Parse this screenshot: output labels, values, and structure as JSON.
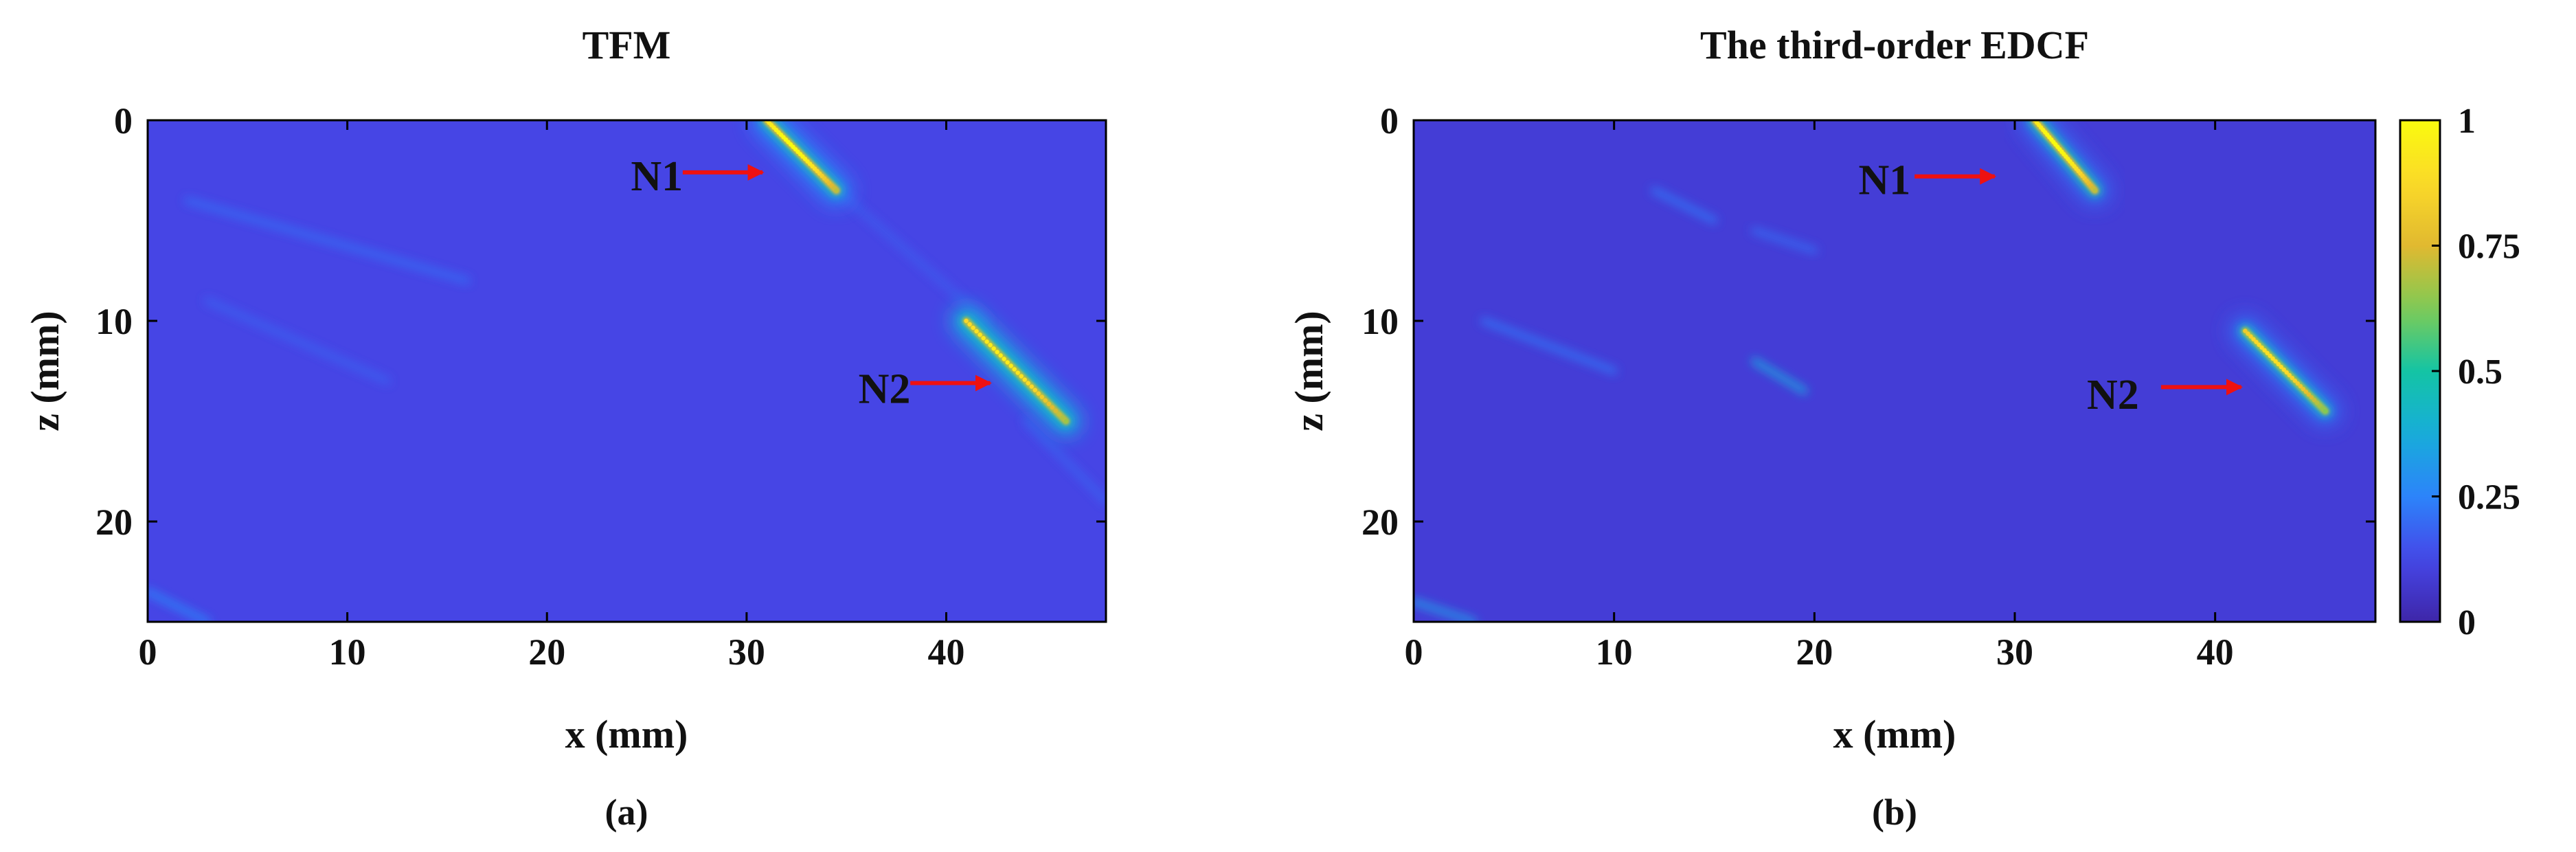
{
  "chart_data": [
    {
      "type": "heatmap",
      "title": "TFM",
      "panel_label": "(a)",
      "xlabel": "x (mm)",
      "ylabel": "z (mm)",
      "xlim": [
        0,
        48
      ],
      "ylim": [
        0,
        25
      ],
      "y_reversed": true,
      "xticks": [
        0,
        10,
        20,
        30,
        40
      ],
      "xtick_labels": [
        "0",
        "10",
        "20",
        "30",
        "40"
      ],
      "yticks": [
        0,
        10,
        20
      ],
      "ytick_labels": [
        "0",
        "10",
        "20"
      ],
      "background_level": 0.12,
      "features": [
        {
          "name": "N1",
          "x_start": 31.0,
          "z_start": 0.0,
          "x_end": 34.5,
          "z_end": 3.5,
          "peak": 1.0,
          "halo": 0.25
        },
        {
          "name": "N2",
          "x_start": 41.0,
          "z_start": 10.0,
          "x_end": 46.0,
          "z_end": 15.0,
          "peak": 0.95,
          "halo": 0.35
        }
      ],
      "streaks": [
        {
          "x_start": 2,
          "z_start": 4,
          "x_end": 16,
          "z_end": 8,
          "level": 0.2
        },
        {
          "x_start": 3,
          "z_start": 9,
          "x_end": 12,
          "z_end": 13,
          "level": 0.18
        },
        {
          "x_start": 0,
          "z_start": 23.5,
          "x_end": 3,
          "z_end": 25,
          "level": 0.25
        },
        {
          "x_start": 34,
          "z_start": 3,
          "x_end": 42,
          "z_end": 10,
          "level": 0.17
        },
        {
          "x_start": 44,
          "z_start": 15,
          "x_end": 48,
          "z_end": 19,
          "level": 0.18
        }
      ],
      "annotations": [
        {
          "text": "N1",
          "x": 24.2,
          "z": 2.8,
          "arrow_from": [
            26.8,
            2.6
          ],
          "arrow_to": [
            30.8,
            2.6
          ]
        },
        {
          "text": "N2",
          "x": 35.6,
          "z": 13.4,
          "arrow_from": [
            38.2,
            13.1
          ],
          "arrow_to": [
            42.2,
            13.1
          ]
        }
      ]
    },
    {
      "type": "heatmap",
      "title": "The third-order EDCF",
      "panel_label": "(b)",
      "xlabel": "x (mm)",
      "ylabel": "z (mm)",
      "xlim": [
        0,
        48
      ],
      "ylim": [
        0,
        25
      ],
      "y_reversed": true,
      "xticks": [
        0,
        10,
        20,
        30,
        40
      ],
      "xtick_labels": [
        "0",
        "10",
        "20",
        "30",
        "40"
      ],
      "yticks": [
        0,
        10,
        20
      ],
      "ytick_labels": [
        "0",
        "10",
        "20"
      ],
      "background_level": 0.09,
      "features": [
        {
          "name": "N1",
          "x_start": 31.0,
          "z_start": 0.0,
          "x_end": 34.0,
          "z_end": 3.5,
          "peak": 1.0,
          "halo": 0.2
        },
        {
          "name": "N2",
          "x_start": 41.5,
          "z_start": 10.5,
          "x_end": 45.5,
          "z_end": 14.5,
          "peak": 0.9,
          "halo": 0.2
        }
      ],
      "streaks": [
        {
          "x_start": 12,
          "z_start": 3.5,
          "x_end": 15,
          "z_end": 5,
          "level": 0.22
        },
        {
          "x_start": 17,
          "z_start": 5.5,
          "x_end": 20,
          "z_end": 6.5,
          "level": 0.2
        },
        {
          "x_start": 3.5,
          "z_start": 10,
          "x_end": 10,
          "z_end": 12.5,
          "level": 0.22
        },
        {
          "x_start": 17,
          "z_start": 12,
          "x_end": 19.5,
          "z_end": 13.5,
          "level": 0.35
        },
        {
          "x_start": 0,
          "z_start": 24,
          "x_end": 3,
          "z_end": 25,
          "level": 0.32
        }
      ],
      "annotations": [
        {
          "text": "N1",
          "x": 22.2,
          "z": 3.0,
          "arrow_from": [
            25.0,
            2.8
          ],
          "arrow_to": [
            29.0,
            2.8
          ]
        },
        {
          "text": "N2",
          "x": 33.6,
          "z": 13.7,
          "arrow_from": [
            37.3,
            13.3
          ],
          "arrow_to": [
            41.3,
            13.3
          ]
        }
      ],
      "colorbar": {
        "ticks": [
          0,
          0.25,
          0.5,
          0.75,
          1
        ],
        "tick_labels": [
          "0",
          "0.25",
          "0.5",
          "0.75",
          "1"
        ],
        "range": [
          0,
          1
        ],
        "colormap": "parula"
      }
    }
  ],
  "colors": {
    "colormap_stops": [
      "#3e26a8",
      "#4646e8",
      "#2c84fa",
      "#17adda",
      "#14c4a4",
      "#7fcb54",
      "#e1b930",
      "#fbd929",
      "#f9fb0e"
    ],
    "arrow": "#ee1111",
    "text": "#111111",
    "axis": "#000000"
  }
}
